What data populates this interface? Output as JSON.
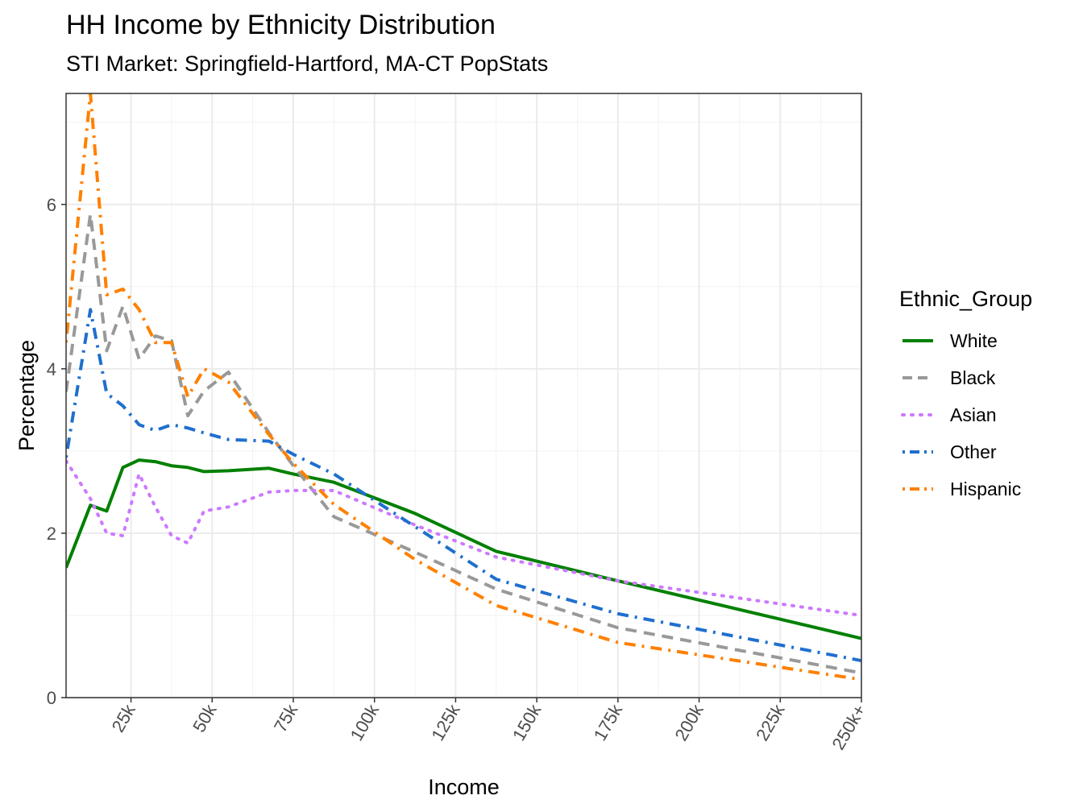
{
  "chart_data": {
    "type": "line",
    "title": "HH Income by Ethnicity Distribution",
    "subtitle": "STI Market: Springfield-Hartford, MA-CT PopStats",
    "xlabel": "Income",
    "ylabel": "Percentage",
    "xlim": [
      5,
      250
    ],
    "ylim": [
      0,
      7.35
    ],
    "x_ticks": [
      25,
      50,
      75,
      100,
      125,
      150,
      175,
      200,
      225,
      250
    ],
    "x_tick_labels": [
      "25k",
      "50k",
      "75k",
      "100k",
      "125k",
      "150k",
      "175k",
      "200k",
      "225k",
      "250k+"
    ],
    "y_ticks": [
      0,
      2,
      4,
      6
    ],
    "y_tick_labels": [
      "0",
      "2",
      "4",
      "6"
    ],
    "grid": true,
    "legend_title": "Ethnic_Group",
    "legend_position": "right",
    "x": [
      5,
      12.5,
      17.5,
      22.5,
      27.5,
      32.5,
      37.5,
      42.5,
      47.5,
      55,
      67.5,
      75,
      87.5,
      112.5,
      137.5,
      175,
      250
    ],
    "series": [
      {
        "name": "White",
        "color": "#008000",
        "dash": "solid",
        "values": [
          1.58,
          2.34,
          2.27,
          2.8,
          2.89,
          2.87,
          2.82,
          2.8,
          2.75,
          2.76,
          2.79,
          2.72,
          2.62,
          2.24,
          1.78,
          1.42,
          0.72
        ]
      },
      {
        "name": "Black",
        "color": "#999999",
        "dash": "dashed",
        "values": [
          3.72,
          5.88,
          4.22,
          4.76,
          4.12,
          4.4,
          4.34,
          3.43,
          3.73,
          3.96,
          3.22,
          2.82,
          2.2,
          1.77,
          1.32,
          0.85,
          0.3
        ]
      },
      {
        "name": "Asian",
        "color": "#cc79ff",
        "dash": "dotted",
        "values": [
          2.88,
          2.42,
          2.0,
          1.97,
          2.72,
          2.32,
          1.97,
          1.88,
          2.27,
          2.32,
          2.5,
          2.52,
          2.52,
          2.1,
          1.71,
          1.42,
          1.0
        ]
      },
      {
        "name": "Other",
        "color": "#1f6fce",
        "dash": "dotdash",
        "values": [
          2.92,
          4.72,
          3.7,
          3.55,
          3.32,
          3.25,
          3.32,
          3.28,
          3.22,
          3.14,
          3.12,
          2.96,
          2.72,
          2.08,
          1.44,
          1.02,
          0.45
        ]
      },
      {
        "name": "Hispanic",
        "color": "#ff8000",
        "dash": "dotdash",
        "values": [
          4.32,
          7.35,
          4.9,
          4.97,
          4.72,
          4.32,
          4.32,
          3.66,
          4.0,
          3.84,
          3.2,
          2.85,
          2.35,
          1.68,
          1.12,
          0.67,
          0.22
        ]
      }
    ]
  }
}
